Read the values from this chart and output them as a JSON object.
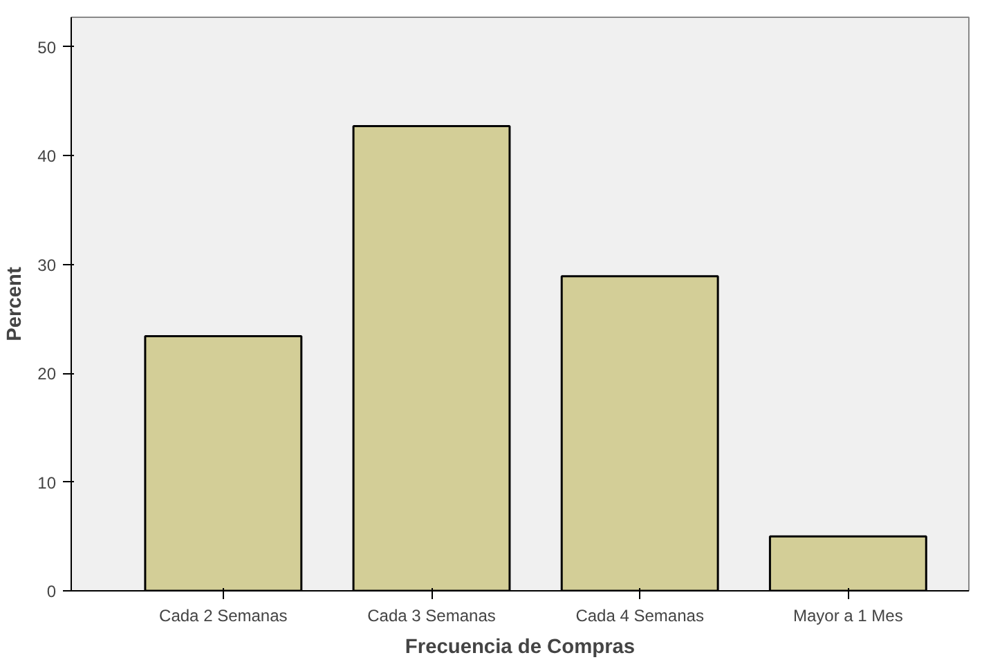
{
  "chart_data": {
    "type": "bar",
    "xlabel": "Frecuencia de Compras",
    "ylabel": "Percent",
    "categories": [
      "Cada 2 Semanas",
      "Cada 3 Semanas",
      "Cada 4 Semanas",
      "Mayor a 1 Mes"
    ],
    "values": [
      23.4,
      42.7,
      28.9,
      5.0
    ],
    "color": "#d3ce97",
    "ylim": [
      0,
      52.7
    ],
    "yticks": [
      0,
      10,
      20,
      30,
      40,
      50
    ],
    "grid": false
  }
}
